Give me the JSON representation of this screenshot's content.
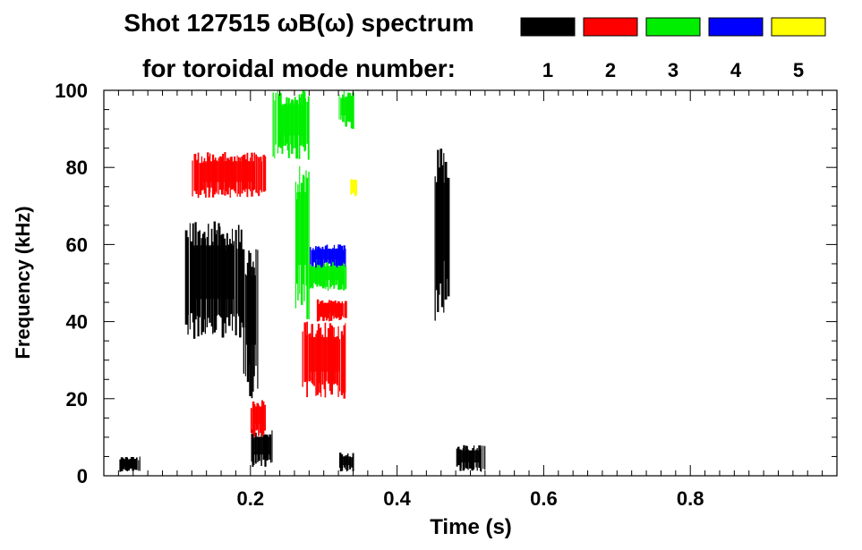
{
  "chart_data": {
    "type": "heatmap",
    "title_line1": "Shot 127515 ωB(ω) spectrum",
    "title_line2": "for toroidal mode number:",
    "xlabel": "Time (s)",
    "ylabel": "Frequency (kHz)",
    "xlim": [
      0.0,
      1.0
    ],
    "ylim": [
      0,
      100
    ],
    "xticks": [
      0.2,
      0.4,
      0.6,
      0.8
    ],
    "xtick_labels": [
      "0.2",
      "0.4",
      "0.6",
      "0.8"
    ],
    "yticks": [
      0,
      20,
      40,
      60,
      80,
      100
    ],
    "ytick_labels": [
      "0",
      "20",
      "40",
      "60",
      "80",
      "100"
    ],
    "legend_placement": "top-right",
    "modes": [
      {
        "label": "1",
        "color": "#000000"
      },
      {
        "label": "2",
        "color": "#ff0000"
      },
      {
        "label": "3",
        "color": "#00ee00"
      },
      {
        "label": "4",
        "color": "#0000ff"
      },
      {
        "label": "5",
        "color": "#ffff00"
      }
    ],
    "regions": [
      {
        "mode": "1",
        "t": [
          0.11,
          0.19
        ],
        "f": [
          35,
          66
        ]
      },
      {
        "mode": "1",
        "t": [
          0.19,
          0.21
        ],
        "f": [
          20,
          60
        ]
      },
      {
        "mode": "1",
        "t": [
          0.2,
          0.23
        ],
        "f": [
          2,
          12
        ]
      },
      {
        "mode": "1",
        "t": [
          0.32,
          0.34
        ],
        "f": [
          1,
          6
        ]
      },
      {
        "mode": "1",
        "t": [
          0.45,
          0.47
        ],
        "f": [
          40,
          85
        ]
      },
      {
        "mode": "1",
        "t": [
          0.48,
          0.52
        ],
        "f": [
          1,
          8
        ]
      },
      {
        "mode": "1",
        "t": [
          0.02,
          0.05
        ],
        "f": [
          1,
          5
        ]
      },
      {
        "mode": "2",
        "t": [
          0.12,
          0.22
        ],
        "f": [
          72,
          84
        ]
      },
      {
        "mode": "2",
        "t": [
          0.27,
          0.33
        ],
        "f": [
          20,
          40
        ]
      },
      {
        "mode": "2",
        "t": [
          0.29,
          0.33
        ],
        "f": [
          40,
          46
        ]
      },
      {
        "mode": "2",
        "t": [
          0.2,
          0.22
        ],
        "f": [
          10,
          20
        ]
      },
      {
        "mode": "3",
        "t": [
          0.23,
          0.28
        ],
        "f": [
          82,
          100
        ]
      },
      {
        "mode": "3",
        "t": [
          0.26,
          0.28
        ],
        "f": [
          40,
          82
        ]
      },
      {
        "mode": "3",
        "t": [
          0.28,
          0.33
        ],
        "f": [
          48,
          56
        ]
      },
      {
        "mode": "3",
        "t": [
          0.32,
          0.34
        ],
        "f": [
          90,
          100
        ]
      },
      {
        "mode": "4",
        "t": [
          0.28,
          0.33
        ],
        "f": [
          54,
          60
        ]
      },
      {
        "mode": "5",
        "t": [
          0.335,
          0.345
        ],
        "f": [
          72,
          78
        ]
      }
    ]
  }
}
